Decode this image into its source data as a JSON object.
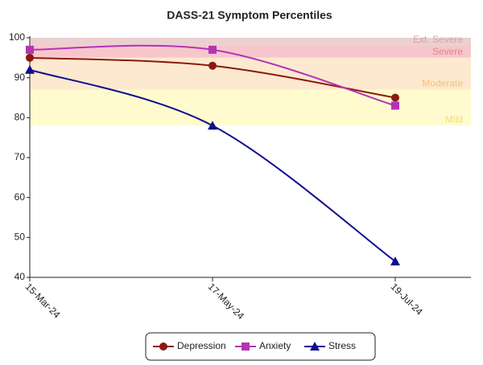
{
  "chart_data": {
    "type": "line",
    "title": "DASS-21 Symptom Percentiles",
    "categories": [
      "15-Mar-24",
      "17-May-24",
      "19-Jul-24"
    ],
    "series": [
      {
        "name": "Depression",
        "color": "#8b1a0e",
        "marker": "circle",
        "values": [
          95,
          93,
          85
        ]
      },
      {
        "name": "Anxiety",
        "color": "#b533b5",
        "marker": "square",
        "values": [
          97,
          97,
          83
        ]
      },
      {
        "name": "Stress",
        "color": "#0f0f8c",
        "marker": "triangle",
        "values": [
          92,
          78,
          44
        ]
      }
    ],
    "bands": [
      {
        "label": "Ext. Severe",
        "from": 98,
        "to": 100,
        "color": "#ead0d0",
        "text_color": "#d6a3a3"
      },
      {
        "label": "Severe",
        "from": 95,
        "to": 98,
        "color": "#f7c6cc",
        "text_color": "#e98080"
      },
      {
        "label": "Moderate",
        "from": 87,
        "to": 95,
        "color": "#fde9cf",
        "text_color": "#f3c373"
      },
      {
        "label": "Mild",
        "from": 78,
        "to": 87,
        "color": "#fffbcf",
        "text_color": "#efde7c"
      }
    ],
    "ylim": [
      40,
      100
    ],
    "yticks": [
      40,
      50,
      60,
      70,
      80,
      90,
      100
    ]
  }
}
